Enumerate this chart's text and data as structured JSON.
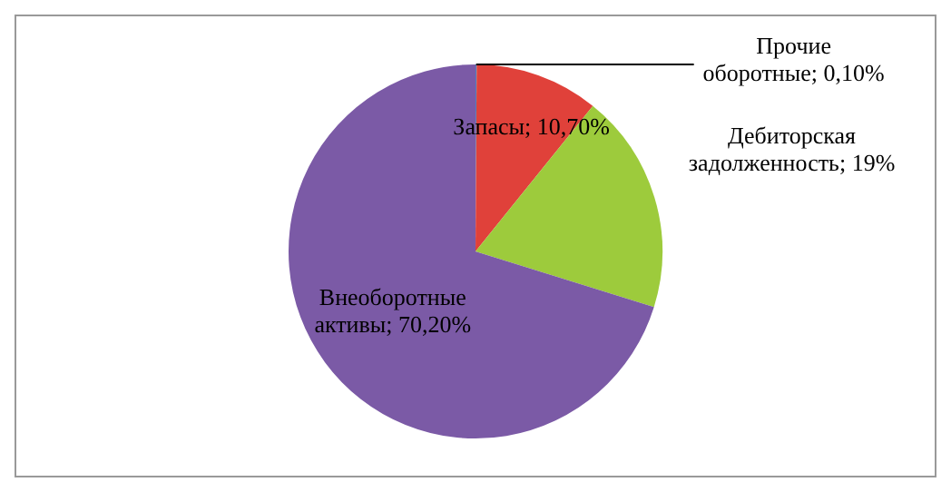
{
  "chart_data": {
    "type": "pie",
    "categories": [
      "Прочие оборотные",
      "Запасы",
      "Дебиторская задолженность",
      "Внеоборотные активы"
    ],
    "values": [
      0.1,
      10.7,
      19,
      70.2
    ],
    "value_labels": [
      "0,10%",
      "10,70%",
      "19%",
      "70,20%"
    ],
    "colors": [
      "#4f81bd",
      "#e0413a",
      "#9dcb3c",
      "#7b5aa6"
    ],
    "legend": false
  }
}
